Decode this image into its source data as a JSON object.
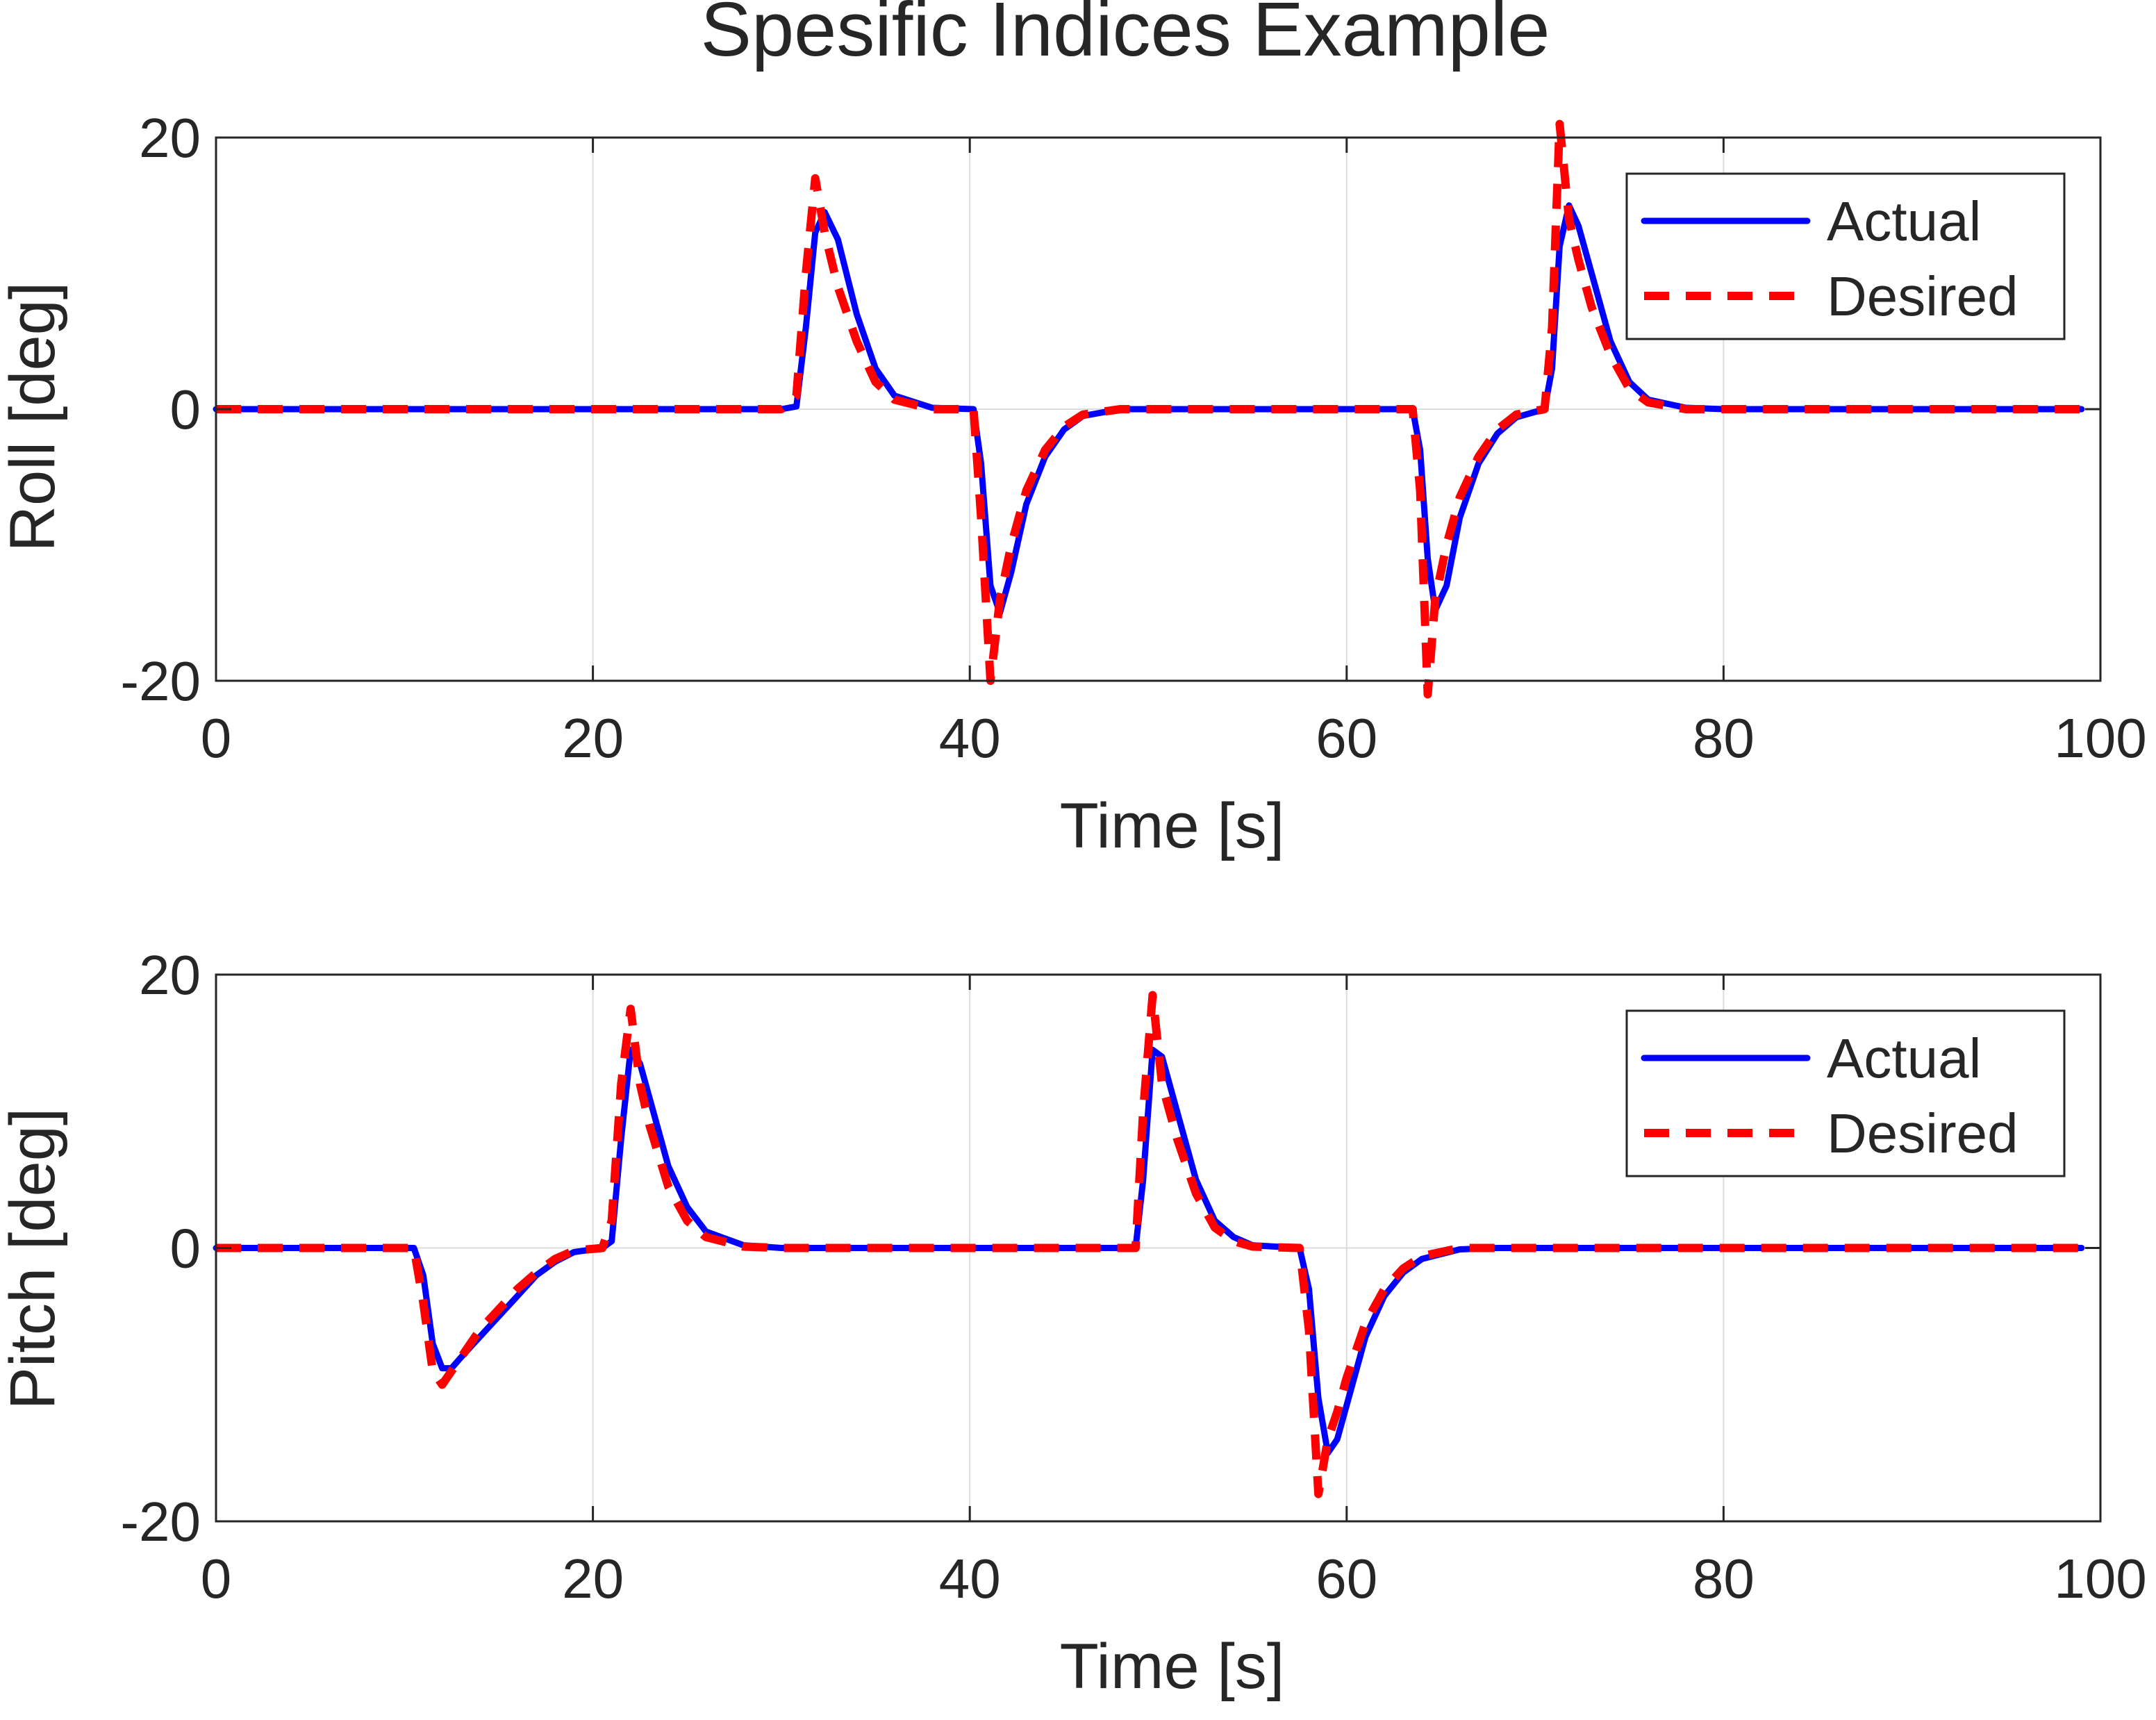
{
  "chart_data": {
    "title": "Spesific Indices Example",
    "subplots": [
      {
        "type": "line",
        "xlabel": "Time [s]",
        "ylabel": "Roll [deg]",
        "xlim": [
          0,
          100
        ],
        "ylim": [
          -20,
          20
        ],
        "xticks": [
          "0",
          "20",
          "40",
          "60",
          "80",
          "100"
        ],
        "yticks": [
          "20",
          "0",
          "-20"
        ],
        "grid": true,
        "legend_position": "top-right",
        "x": [
          0,
          30,
          30.8,
          31.3,
          31.8,
          32.3,
          33,
          34,
          35,
          36,
          38,
          40.2,
          40.6,
          41.1,
          41.6,
          42.2,
          43,
          44,
          45,
          46,
          48,
          50,
          63.5,
          63.9,
          64.3,
          64.7,
          65.3,
          66,
          67,
          68,
          69,
          70.5,
          70.9,
          71.3,
          71.8,
          72.3,
          73,
          74,
          75,
          76,
          78,
          80,
          99
        ],
        "series": [
          {
            "name": "Actual",
            "color": "#0000ff",
            "style": "solid",
            "values": [
              0,
              0,
              0.2,
              6,
              13,
              14.5,
              12.5,
              7,
              3,
              1,
              0.1,
              0,
              -4,
              -13,
              -15,
              -12,
              -7,
              -3.5,
              -1.5,
              -0.5,
              0,
              0,
              0,
              -3,
              -11,
              -14.8,
              -13,
              -8,
              -4,
              -1.8,
              -0.6,
              0,
              3,
              12,
              15,
              13.5,
              10,
              5,
              2,
              0.7,
              0.1,
              0,
              0
            ]
          },
          {
            "name": "Desired",
            "color": "#ff0000",
            "style": "dashed",
            "values": [
              0,
              0,
              1,
              10,
              17,
              13,
              9,
              5,
              2,
              0.7,
              0,
              0,
              -8,
              -20,
              -14,
              -10,
              -6,
              -3,
              -1.3,
              -0.4,
              0,
              0,
              0,
              -6,
              -21,
              -14,
              -10,
              -6.5,
              -3.5,
              -1.5,
              -0.4,
              0,
              6,
              21,
              14,
              11,
              7.5,
              4,
              1.5,
              0.5,
              0,
              0,
              0
            ]
          }
        ]
      },
      {
        "type": "line",
        "xlabel": "Time [s]",
        "ylabel": "Pitch [deg]",
        "xlim": [
          0,
          100
        ],
        "ylim": [
          -20,
          20
        ],
        "xticks": [
          "0",
          "20",
          "40",
          "60",
          "80",
          "100"
        ],
        "yticks": [
          "20",
          "0",
          "-20"
        ],
        "grid": true,
        "legend_position": "top-right",
        "x": [
          0,
          10.5,
          11,
          11.5,
          12,
          12.5,
          13,
          14,
          15,
          16,
          17,
          18,
          19,
          20.5,
          21,
          21.5,
          22,
          22.5,
          23,
          24,
          25,
          26,
          28,
          30,
          48.8,
          49.2,
          49.7,
          50.2,
          51,
          52,
          53,
          54,
          55,
          57.5,
          58,
          58.5,
          59,
          59.5,
          60,
          61,
          62,
          63,
          64,
          66,
          68,
          99
        ],
        "series": [
          {
            "name": "Actual",
            "color": "#0000ff",
            "style": "solid",
            "values": [
              0,
              0,
              -2,
              -7,
              -8.8,
              -8.8,
              -8,
              -6.5,
              -5,
              -3.5,
              -2,
              -1,
              -0.3,
              0,
              0.5,
              8,
              14.5,
              13.5,
              11,
              6,
              3,
              1.2,
              0.2,
              0,
              0,
              5,
              14.5,
              14,
              10,
              5,
              2,
              0.8,
              0.2,
              0,
              -3,
              -11,
              -15,
              -14,
              -11.5,
              -6.5,
              -3.5,
              -1.8,
              -0.8,
              -0.1,
              0,
              0
            ]
          },
          {
            "name": "Desired",
            "color": "#ff0000",
            "style": "dashed",
            "values": [
              0,
              0,
              -4,
              -9,
              -10,
              -9,
              -8,
              -6,
              -4.5,
              -3,
              -1.8,
              -0.8,
              -0.2,
              0,
              2,
              12,
              17.5,
              12,
              9,
              4.5,
              2,
              0.8,
              0.1,
              0,
              0,
              10,
              18.5,
              12,
              8,
              4,
              1.5,
              0.5,
              0.1,
              0,
              -6,
              -18,
              -14,
              -12,
              -9.5,
              -5.5,
              -3,
              -1.5,
              -0.6,
              0,
              0,
              0
            ]
          }
        ]
      }
    ]
  }
}
